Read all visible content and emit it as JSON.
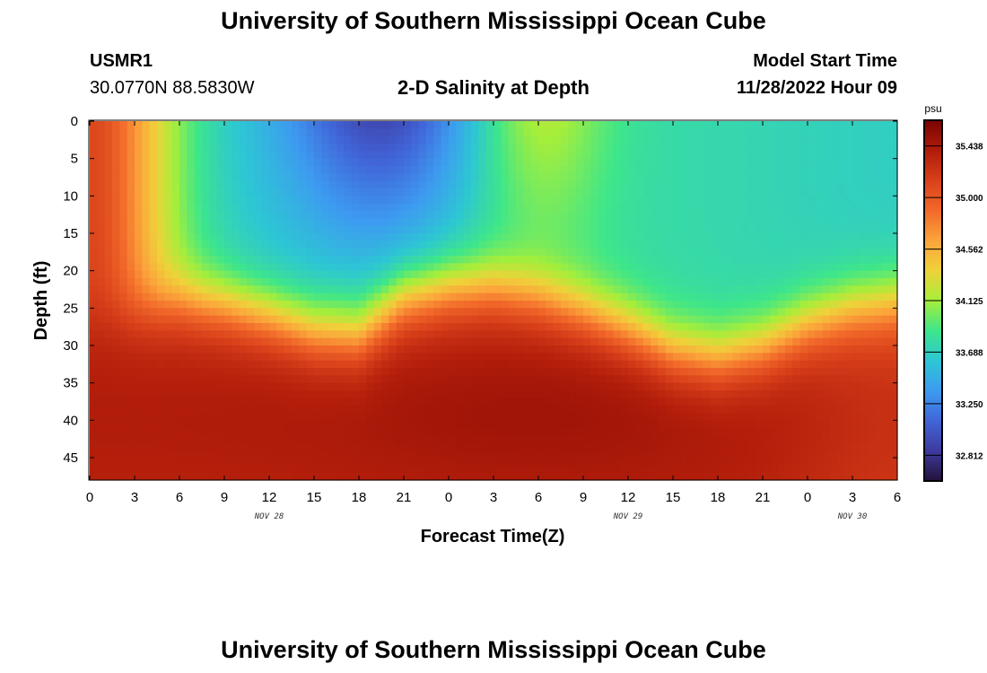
{
  "page": {
    "title": "University of Southern Mississippi Ocean Cube",
    "footer_title": "University of Southern Mississippi Ocean Cube"
  },
  "station": {
    "id": "USMR1",
    "coords": "30.0770N  88.5830W"
  },
  "model": {
    "label": "Model Start Time",
    "start": "11/28/2022 Hour 09"
  },
  "chart_data": {
    "type": "heatmap",
    "title": "2-D Salinity at Depth",
    "xlabel": "Forecast Time(Z)",
    "ylabel": "Depth (ft)",
    "x_tick_labels": [
      "0",
      "3",
      "6",
      "9",
      "12",
      "15",
      "18",
      "21",
      "0",
      "3",
      "6",
      "9",
      "12",
      "15",
      "18",
      "21",
      "0",
      "3",
      "6"
    ],
    "x_range_hours": [
      0,
      54
    ],
    "date_labels": [
      {
        "text": "NOV 28",
        "hour": 12
      },
      {
        "text": "NOV 29",
        "hour": 36
      },
      {
        "text": "NOV 30",
        "hour": 51
      }
    ],
    "y_tick_labels": [
      "0",
      "5",
      "10",
      "15",
      "20",
      "25",
      "30",
      "35",
      "40",
      "45"
    ],
    "ylim": [
      0,
      48
    ],
    "colorbar": {
      "unit": "psu",
      "range": [
        32.594,
        35.656
      ],
      "tick_values": [
        35.438,
        35.0,
        34.562,
        34.125,
        33.688,
        33.25,
        32.812
      ],
      "tick_labels": [
        "35.438",
        "35.000",
        "34.562",
        "34.125",
        "33.688",
        "33.250",
        "32.812"
      ],
      "colors": [
        "#23123a",
        "#3e3a9e",
        "#4165d8",
        "#3d9bf0",
        "#2dc6d4",
        "#3ee68a",
        "#a6ee3a",
        "#efd23a",
        "#fba43a",
        "#f2692a",
        "#d8401a",
        "#b01c0a",
        "#7a0403"
      ]
    },
    "halocline_depth_ft": [
      {
        "hour": 0,
        "depth": 26
      },
      {
        "hour": 3,
        "depth": 25.5
      },
      {
        "hour": 6,
        "depth": 24
      },
      {
        "hour": 9,
        "depth": 24.5
      },
      {
        "hour": 12,
        "depth": 26
      },
      {
        "hour": 15,
        "depth": 28
      },
      {
        "hour": 18,
        "depth": 28.5
      },
      {
        "hour": 21,
        "depth": 24
      },
      {
        "hour": 24,
        "depth": 22.5
      },
      {
        "hour": 27,
        "depth": 22
      },
      {
        "hour": 30,
        "depth": 23
      },
      {
        "hour": 33,
        "depth": 25
      },
      {
        "hour": 36,
        "depth": 27.5
      },
      {
        "hour": 39,
        "depth": 30.5
      },
      {
        "hour": 42,
        "depth": 31.5
      },
      {
        "hour": 45,
        "depth": 30
      },
      {
        "hour": 48,
        "depth": 27
      },
      {
        "hour": 51,
        "depth": 25
      },
      {
        "hour": 54,
        "depth": 24
      }
    ]
  }
}
